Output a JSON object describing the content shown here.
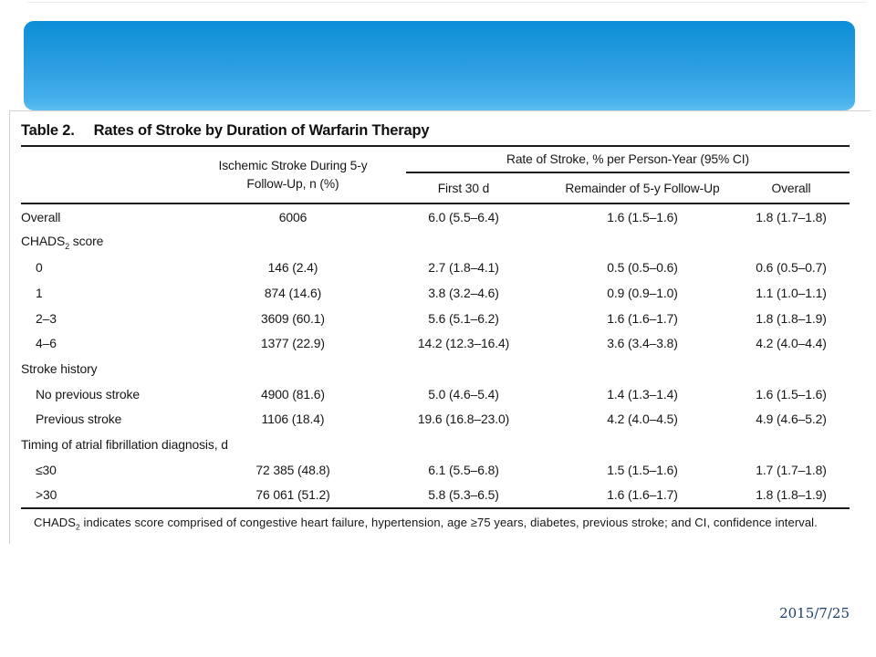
{
  "slide": {
    "date": "2015/7/25"
  },
  "colors": {
    "title_bar_gradient_top": "#0d8ed6",
    "title_bar_gradient_bottom": "#5fbeef",
    "table_rule": "#1a1a1a",
    "panel_border": "#d2d2d2",
    "date_text": "#1d3e6b"
  },
  "table": {
    "title_label": "Table 2.",
    "title": "Rates of Stroke by Duration of Warfarin Therapy",
    "headers": {
      "n_col": "Ischemic Stroke During 5-y Follow-Up, n (%)",
      "rate_span": "Rate of Stroke, % per Person-Year (95% CI)",
      "first30": "First 30 d",
      "remainder": "Remainder of 5-y Follow-Up",
      "overall": "Overall"
    },
    "rows": [
      {
        "label": "Overall",
        "n": "6006",
        "first30": "6.0 (5.5–6.4)",
        "remainder": "1.6 (1.5–1.6)",
        "overall": "1.8 (1.7–1.8)"
      },
      {
        "label": "CHADS",
        "label_sub": "2",
        "label_rest": " score"
      },
      {
        "label": "0",
        "n": "146 (2.4)",
        "first30": "2.7 (1.8–4.1)",
        "remainder": "0.5 (0.5–0.6)",
        "overall": "0.6 (0.5–0.7)"
      },
      {
        "label": "1",
        "n": "874 (14.6)",
        "first30": "3.8 (3.2–4.6)",
        "remainder": "0.9 (0.9–1.0)",
        "overall": "1.1 (1.0–1.1)"
      },
      {
        "label": "2–3",
        "n": "3609 (60.1)",
        "first30": "5.6 (5.1–6.2)",
        "remainder": "1.6 (1.6–1.7)",
        "overall": "1.8 (1.8–1.9)"
      },
      {
        "label": "4–6",
        "n": "1377 (22.9)",
        "first30": "14.2 (12.3–16.4)",
        "remainder": "3.6 (3.4–3.8)",
        "overall": "4.2 (4.0–4.4)"
      },
      {
        "label": "Stroke history"
      },
      {
        "label": "No previous stroke",
        "n": "4900 (81.6)",
        "first30": "5.0 (4.6–5.4)",
        "remainder": "1.4 (1.3–1.4)",
        "overall": "1.6 (1.5–1.6)"
      },
      {
        "label": "Previous stroke",
        "n": "1106 (18.4)",
        "first30": "19.6 (16.8–23.0)",
        "remainder": "4.2 (4.0–4.5)",
        "overall": "4.9 (4.6–5.2)"
      },
      {
        "label": "Timing of atrial fibrillation diagnosis, d"
      },
      {
        "label": "≤30",
        "n": "72 385 (48.8)",
        "first30": "6.1 (5.5–6.8)",
        "remainder": "1.5 (1.5–1.6)",
        "overall": "1.7 (1.7–1.8)"
      },
      {
        "label": ">30",
        "n": "76 061 (51.2)",
        "first30": "5.8 (5.3–6.5)",
        "remainder": "1.6 (1.6–1.7)",
        "overall": "1.8 (1.8–1.9)"
      }
    ],
    "footnote": {
      "prefix": "CHADS",
      "sub": "2",
      "text": " indicates score comprised of congestive heart failure, hypertension, age ≥75 years, diabetes, previous stroke; and CI, confidence interval."
    }
  }
}
